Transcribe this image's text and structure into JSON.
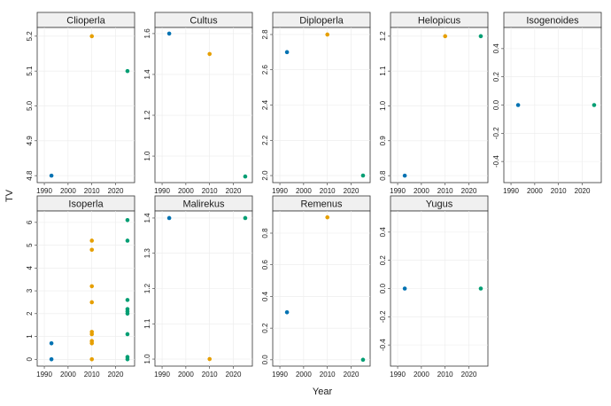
{
  "chart_data": {
    "type": "scatter",
    "layout": "facet-grid",
    "xlabel": "Year",
    "ylabel": "TV",
    "grid": true,
    "colors": {
      "year_1993": "#0072B2",
      "year_2010": "#E69F00",
      "year_2025": "#009E73"
    },
    "x_ticks": [
      "1990",
      "2000",
      "2010",
      "2020"
    ],
    "xlim": [
      1987,
      2028
    ],
    "panels": [
      {
        "title": "Clioperla",
        "ylim": [
          4.78,
          5.225
        ],
        "y_ticks": [
          4.8,
          4.9,
          5.0,
          5.1,
          5.2
        ],
        "y_tick_labels": [
          "4.8",
          "4.9",
          "5.0",
          "5.1",
          "5.2"
        ],
        "points": [
          {
            "x": 1993,
            "y": 4.8,
            "color": "#0072B2"
          },
          {
            "x": 2010,
            "y": 5.2,
            "color": "#E69F00"
          },
          {
            "x": 2025,
            "y": 5.1,
            "color": "#009E73"
          }
        ]
      },
      {
        "title": "Cultus",
        "ylim": [
          0.87,
          1.63
        ],
        "y_ticks": [
          1.0,
          1.2,
          1.4,
          1.6
        ],
        "y_tick_labels": [
          "1.0",
          "1.2",
          "1.4",
          "1.6"
        ],
        "points": [
          {
            "x": 1993,
            "y": 1.6,
            "color": "#0072B2"
          },
          {
            "x": 2010,
            "y": 1.5,
            "color": "#E69F00"
          },
          {
            "x": 2025,
            "y": 0.9,
            "color": "#009E73"
          }
        ]
      },
      {
        "title": "Diploperla",
        "ylim": [
          1.96,
          2.84
        ],
        "y_ticks": [
          2.0,
          2.2,
          2.4,
          2.6,
          2.8
        ],
        "y_tick_labels": [
          "2.0",
          "2.2",
          "2.4",
          "2.6",
          "2.8"
        ],
        "points": [
          {
            "x": 1993,
            "y": 2.7,
            "color": "#0072B2"
          },
          {
            "x": 2010,
            "y": 2.8,
            "color": "#E69F00"
          },
          {
            "x": 2025,
            "y": 2.0,
            "color": "#009E73"
          }
        ]
      },
      {
        "title": "Helopicus",
        "ylim": [
          0.78,
          1.225
        ],
        "y_ticks": [
          0.8,
          0.9,
          1.0,
          1.1,
          1.2
        ],
        "y_tick_labels": [
          "0.8",
          "0.9",
          "1.0",
          "1.1",
          "1.2"
        ],
        "points": [
          {
            "x": 1993,
            "y": 0.8,
            "color": "#0072B2"
          },
          {
            "x": 2010,
            "y": 1.2,
            "color": "#E69F00"
          },
          {
            "x": 2025,
            "y": 1.2,
            "color": "#009E73"
          }
        ]
      },
      {
        "title": "Isogenoides",
        "ylim": [
          -0.55,
          0.55
        ],
        "y_ticks": [
          -0.4,
          -0.2,
          0.0,
          0.2,
          0.4
        ],
        "y_tick_labels": [
          "-0.4",
          "-0.2",
          "0.0",
          "0.2",
          "0.4"
        ],
        "points": [
          {
            "x": 1993,
            "y": 0.0,
            "color": "#0072B2"
          },
          {
            "x": 2025,
            "y": 0.0,
            "color": "#009E73"
          }
        ]
      },
      {
        "title": "Isoperla",
        "ylim": [
          -0.3,
          6.5
        ],
        "y_ticks": [
          0,
          1,
          2,
          3,
          4,
          5,
          6
        ],
        "y_tick_labels": [
          "0",
          "1",
          "2",
          "3",
          "4",
          "5",
          "6"
        ],
        "points": [
          {
            "x": 1993,
            "y": 0.7,
            "color": "#0072B2"
          },
          {
            "x": 1993,
            "y": 0.0,
            "color": "#0072B2"
          },
          {
            "x": 2010,
            "y": 5.2,
            "color": "#E69F00"
          },
          {
            "x": 2010,
            "y": 4.8,
            "color": "#E69F00"
          },
          {
            "x": 2010,
            "y": 3.2,
            "color": "#E69F00"
          },
          {
            "x": 2010,
            "y": 2.5,
            "color": "#E69F00"
          },
          {
            "x": 2010,
            "y": 1.2,
            "color": "#E69F00"
          },
          {
            "x": 2010,
            "y": 1.1,
            "color": "#E69F00"
          },
          {
            "x": 2010,
            "y": 0.8,
            "color": "#E69F00"
          },
          {
            "x": 2010,
            "y": 0.7,
            "color": "#E69F00"
          },
          {
            "x": 2010,
            "y": 0.0,
            "color": "#E69F00"
          },
          {
            "x": 2025,
            "y": 6.1,
            "color": "#009E73"
          },
          {
            "x": 2025,
            "y": 5.2,
            "color": "#009E73"
          },
          {
            "x": 2025,
            "y": 2.6,
            "color": "#009E73"
          },
          {
            "x": 2025,
            "y": 2.2,
            "color": "#009E73"
          },
          {
            "x": 2025,
            "y": 2.1,
            "color": "#009E73"
          },
          {
            "x": 2025,
            "y": 2.0,
            "color": "#009E73"
          },
          {
            "x": 2025,
            "y": 1.1,
            "color": "#009E73"
          },
          {
            "x": 2025,
            "y": 0.1,
            "color": "#009E73"
          },
          {
            "x": 2025,
            "y": 0.0,
            "color": "#009E73"
          }
        ]
      },
      {
        "title": "Malirekus",
        "ylim": [
          0.98,
          1.42
        ],
        "y_ticks": [
          1.0,
          1.1,
          1.2,
          1.3,
          1.4
        ],
        "y_tick_labels": [
          "1.0",
          "1.1",
          "1.2",
          "1.3",
          "1.4"
        ],
        "points": [
          {
            "x": 1993,
            "y": 1.4,
            "color": "#0072B2"
          },
          {
            "x": 2010,
            "y": 1.0,
            "color": "#E69F00"
          },
          {
            "x": 2025,
            "y": 1.4,
            "color": "#009E73"
          }
        ]
      },
      {
        "title": "Remenus",
        "ylim": [
          -0.04,
          0.94
        ],
        "y_ticks": [
          0.0,
          0.2,
          0.4,
          0.6,
          0.8
        ],
        "y_tick_labels": [
          "0.0",
          "0.2",
          "0.4",
          "0.6",
          "0.8"
        ],
        "points": [
          {
            "x": 1993,
            "y": 0.3,
            "color": "#0072B2"
          },
          {
            "x": 2010,
            "y": 0.9,
            "color": "#E69F00"
          },
          {
            "x": 2025,
            "y": 0.0,
            "color": "#009E73"
          }
        ]
      },
      {
        "title": "Yugus",
        "ylim": [
          -0.55,
          0.55
        ],
        "y_ticks": [
          -0.4,
          -0.2,
          0.0,
          0.2,
          0.4
        ],
        "y_tick_labels": [
          "-0.4",
          "-0.2",
          "0.0",
          "0.2",
          "0.4"
        ],
        "points": [
          {
            "x": 1993,
            "y": 0.0,
            "color": "#0072B2"
          },
          {
            "x": 2025,
            "y": 0.0,
            "color": "#009E73"
          }
        ]
      }
    ]
  }
}
